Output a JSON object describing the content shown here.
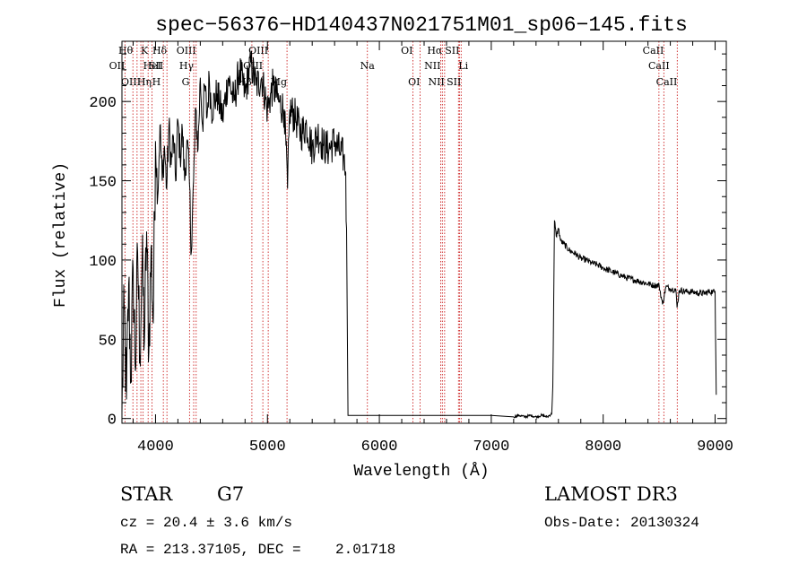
{
  "chart_data": {
    "type": "line",
    "title": "spec−56376−HD140437N021751M01_sp06−145.fits",
    "xlabel": "Wavelength (Å)",
    "ylabel": "Flux (relative)",
    "xlim": [
      3700,
      9100
    ],
    "ylim": [
      -3,
      238
    ],
    "xticks": [
      4000,
      5000,
      6000,
      7000,
      8000,
      9000
    ],
    "yticks": [
      0,
      50,
      100,
      150,
      200
    ],
    "grid": false,
    "line_color": "#000000",
    "marker_color": "#cc2222",
    "series": [
      {
        "name": "flux",
        "points": [
          [
            3700,
            4
          ],
          [
            3720,
            70
          ],
          [
            3740,
            12
          ],
          [
            3760,
            85
          ],
          [
            3780,
            25
          ],
          [
            3800,
            95
          ],
          [
            3820,
            30
          ],
          [
            3840,
            105
          ],
          [
            3860,
            40
          ],
          [
            3880,
            100
          ],
          [
            3900,
            48
          ],
          [
            3920,
            118
          ],
          [
            3940,
            42
          ],
          [
            3960,
            108
          ],
          [
            3980,
            60
          ],
          [
            4000,
            175
          ],
          [
            4020,
            140
          ],
          [
            4040,
            185
          ],
          [
            4060,
            150
          ],
          [
            4080,
            172
          ],
          [
            4100,
            145
          ],
          [
            4120,
            185
          ],
          [
            4140,
            160
          ],
          [
            4160,
            178
          ],
          [
            4180,
            150
          ],
          [
            4200,
            188
          ],
          [
            4220,
            165
          ],
          [
            4240,
            182
          ],
          [
            4260,
            150
          ],
          [
            4280,
            175
          ],
          [
            4300,
            155
          ],
          [
            4320,
            105
          ],
          [
            4340,
            150
          ],
          [
            4360,
            195
          ],
          [
            4380,
            170
          ],
          [
            4400,
            215
          ],
          [
            4420,
            185
          ],
          [
            4440,
            210
          ],
          [
            4460,
            190
          ],
          [
            4480,
            215
          ],
          [
            4500,
            195
          ],
          [
            4550,
            205
          ],
          [
            4600,
            190
          ],
          [
            4650,
            215
          ],
          [
            4700,
            200
          ],
          [
            4750,
            220
          ],
          [
            4800,
            205
          ],
          [
            4850,
            225
          ],
          [
            4900,
            210
          ],
          [
            4950,
            215
          ],
          [
            5000,
            195
          ],
          [
            5050,
            210
          ],
          [
            5100,
            200
          ],
          [
            5150,
            195
          ],
          [
            5180,
            145
          ],
          [
            5200,
            195
          ],
          [
            5250,
            190
          ],
          [
            5300,
            180
          ],
          [
            5350,
            185
          ],
          [
            5400,
            170
          ],
          [
            5450,
            180
          ],
          [
            5500,
            172
          ],
          [
            5550,
            170
          ],
          [
            5600,
            175
          ],
          [
            5650,
            168
          ],
          [
            5680,
            165
          ],
          [
            5690,
            160
          ],
          [
            5700,
            155
          ],
          [
            5710,
            90
          ],
          [
            5720,
            2
          ],
          [
            5760,
            2
          ],
          [
            6000,
            2
          ],
          [
            6500,
            2
          ],
          [
            7000,
            2
          ],
          [
            7200,
            1
          ],
          [
            7250,
            2
          ],
          [
            7300,
            1
          ],
          [
            7350,
            2
          ],
          [
            7400,
            1
          ],
          [
            7450,
            2
          ],
          [
            7500,
            1
          ],
          [
            7540,
            3
          ],
          [
            7550,
            20
          ],
          [
            7560,
            90
          ],
          [
            7565,
            125
          ],
          [
            7580,
            115
          ],
          [
            7600,
            120
          ],
          [
            7620,
            112
          ],
          [
            7650,
            110
          ],
          [
            7700,
            106
          ],
          [
            7750,
            104
          ],
          [
            7800,
            101
          ],
          [
            7850,
            100
          ],
          [
            7900,
            98
          ],
          [
            7950,
            97
          ],
          [
            8000,
            95
          ],
          [
            8100,
            92
          ],
          [
            8200,
            89
          ],
          [
            8300,
            87
          ],
          [
            8400,
            85
          ],
          [
            8450,
            84
          ],
          [
            8500,
            84
          ],
          [
            8530,
            72
          ],
          [
            8560,
            83
          ],
          [
            8600,
            82
          ],
          [
            8650,
            81
          ],
          [
            8660,
            70
          ],
          [
            8680,
            81
          ],
          [
            8750,
            80
          ],
          [
            8800,
            80
          ],
          [
            8850,
            79
          ],
          [
            8900,
            79
          ],
          [
            8950,
            80
          ],
          [
            8980,
            80
          ],
          [
            9000,
            80
          ],
          [
            9010,
            15
          ]
        ]
      }
    ],
    "lines": [
      {
        "label": "Hθ",
        "wl": 3798,
        "row": 0,
        "align": "right"
      },
      {
        "label": "OII",
        "wl": 3727,
        "row": 1,
        "align": "right"
      },
      {
        "label": "OIII",
        "wl": 3869,
        "row": 2,
        "align": "right"
      },
      {
        "label": "K",
        "wl": 3934,
        "row": 0,
        "align": "right"
      },
      {
        "label": "HeI",
        "wl": 3889,
        "row": 1,
        "align": "left"
      },
      {
        "label": "Hη",
        "wl": 3835,
        "row": 2,
        "align": "left"
      },
      {
        "label": "SII",
        "wl": 4070,
        "row": 1,
        "align": "right"
      },
      {
        "label": "H",
        "wl": 3969,
        "row": 2,
        "align": "left"
      },
      {
        "label": "Hδ",
        "wl": 4102,
        "row": 0,
        "align": "right"
      },
      {
        "label": "OIII",
        "wl": 4363,
        "row": 0,
        "align": "right"
      },
      {
        "label": "Hγ",
        "wl": 4341,
        "row": 1,
        "align": "right"
      },
      {
        "label": "G",
        "wl": 4304,
        "row": 2,
        "align": "right"
      },
      {
        "label": "OIII",
        "wl": 5007,
        "row": 0,
        "align": "right"
      },
      {
        "label": "OIII",
        "wl": 4959,
        "row": 1,
        "align": "right"
      },
      {
        "label": "Hβ",
        "wl": 4861,
        "row": 2,
        "align": "right"
      },
      {
        "label": "Mg",
        "wl": 5175,
        "row": 2,
        "align": "right"
      },
      {
        "label": "Na",
        "wl": 5893,
        "row": 1,
        "align": "center"
      },
      {
        "label": "OI",
        "wl": 6300,
        "row": 0,
        "align": "right"
      },
      {
        "label": "OI",
        "wl": 6364,
        "row": 2,
        "align": "right"
      },
      {
        "label": "Hα",
        "wl": 6563,
        "row": 0,
        "align": "right"
      },
      {
        "label": "NII",
        "wl": 6548,
        "row": 1,
        "align": "right"
      },
      {
        "label": "NII",
        "wl": 6583,
        "row": 2,
        "align": "right"
      },
      {
        "label": "SII",
        "wl": 6716,
        "row": 0,
        "align": "right"
      },
      {
        "label": "Li",
        "wl": 6707,
        "row": 1,
        "align": "left"
      },
      {
        "label": "SII",
        "wl": 6731,
        "row": 2,
        "align": "right"
      },
      {
        "label": "CaII",
        "wl": 8542,
        "row": 0,
        "align": "right"
      },
      {
        "label": "CaII",
        "wl": 8498,
        "row": 1,
        "align": "center"
      },
      {
        "label": "CaII",
        "wl": 8662,
        "row": 2,
        "align": "right"
      }
    ]
  },
  "info": {
    "object_class": "STAR",
    "subclass": "G7",
    "survey": "LAMOST DR3",
    "redshift": "cz = 20.4 ± 3.6 km/s",
    "obs_date": "Obs-Date: 20130324",
    "coords": "RA = 213.37105, DEC =    2.01718"
  }
}
